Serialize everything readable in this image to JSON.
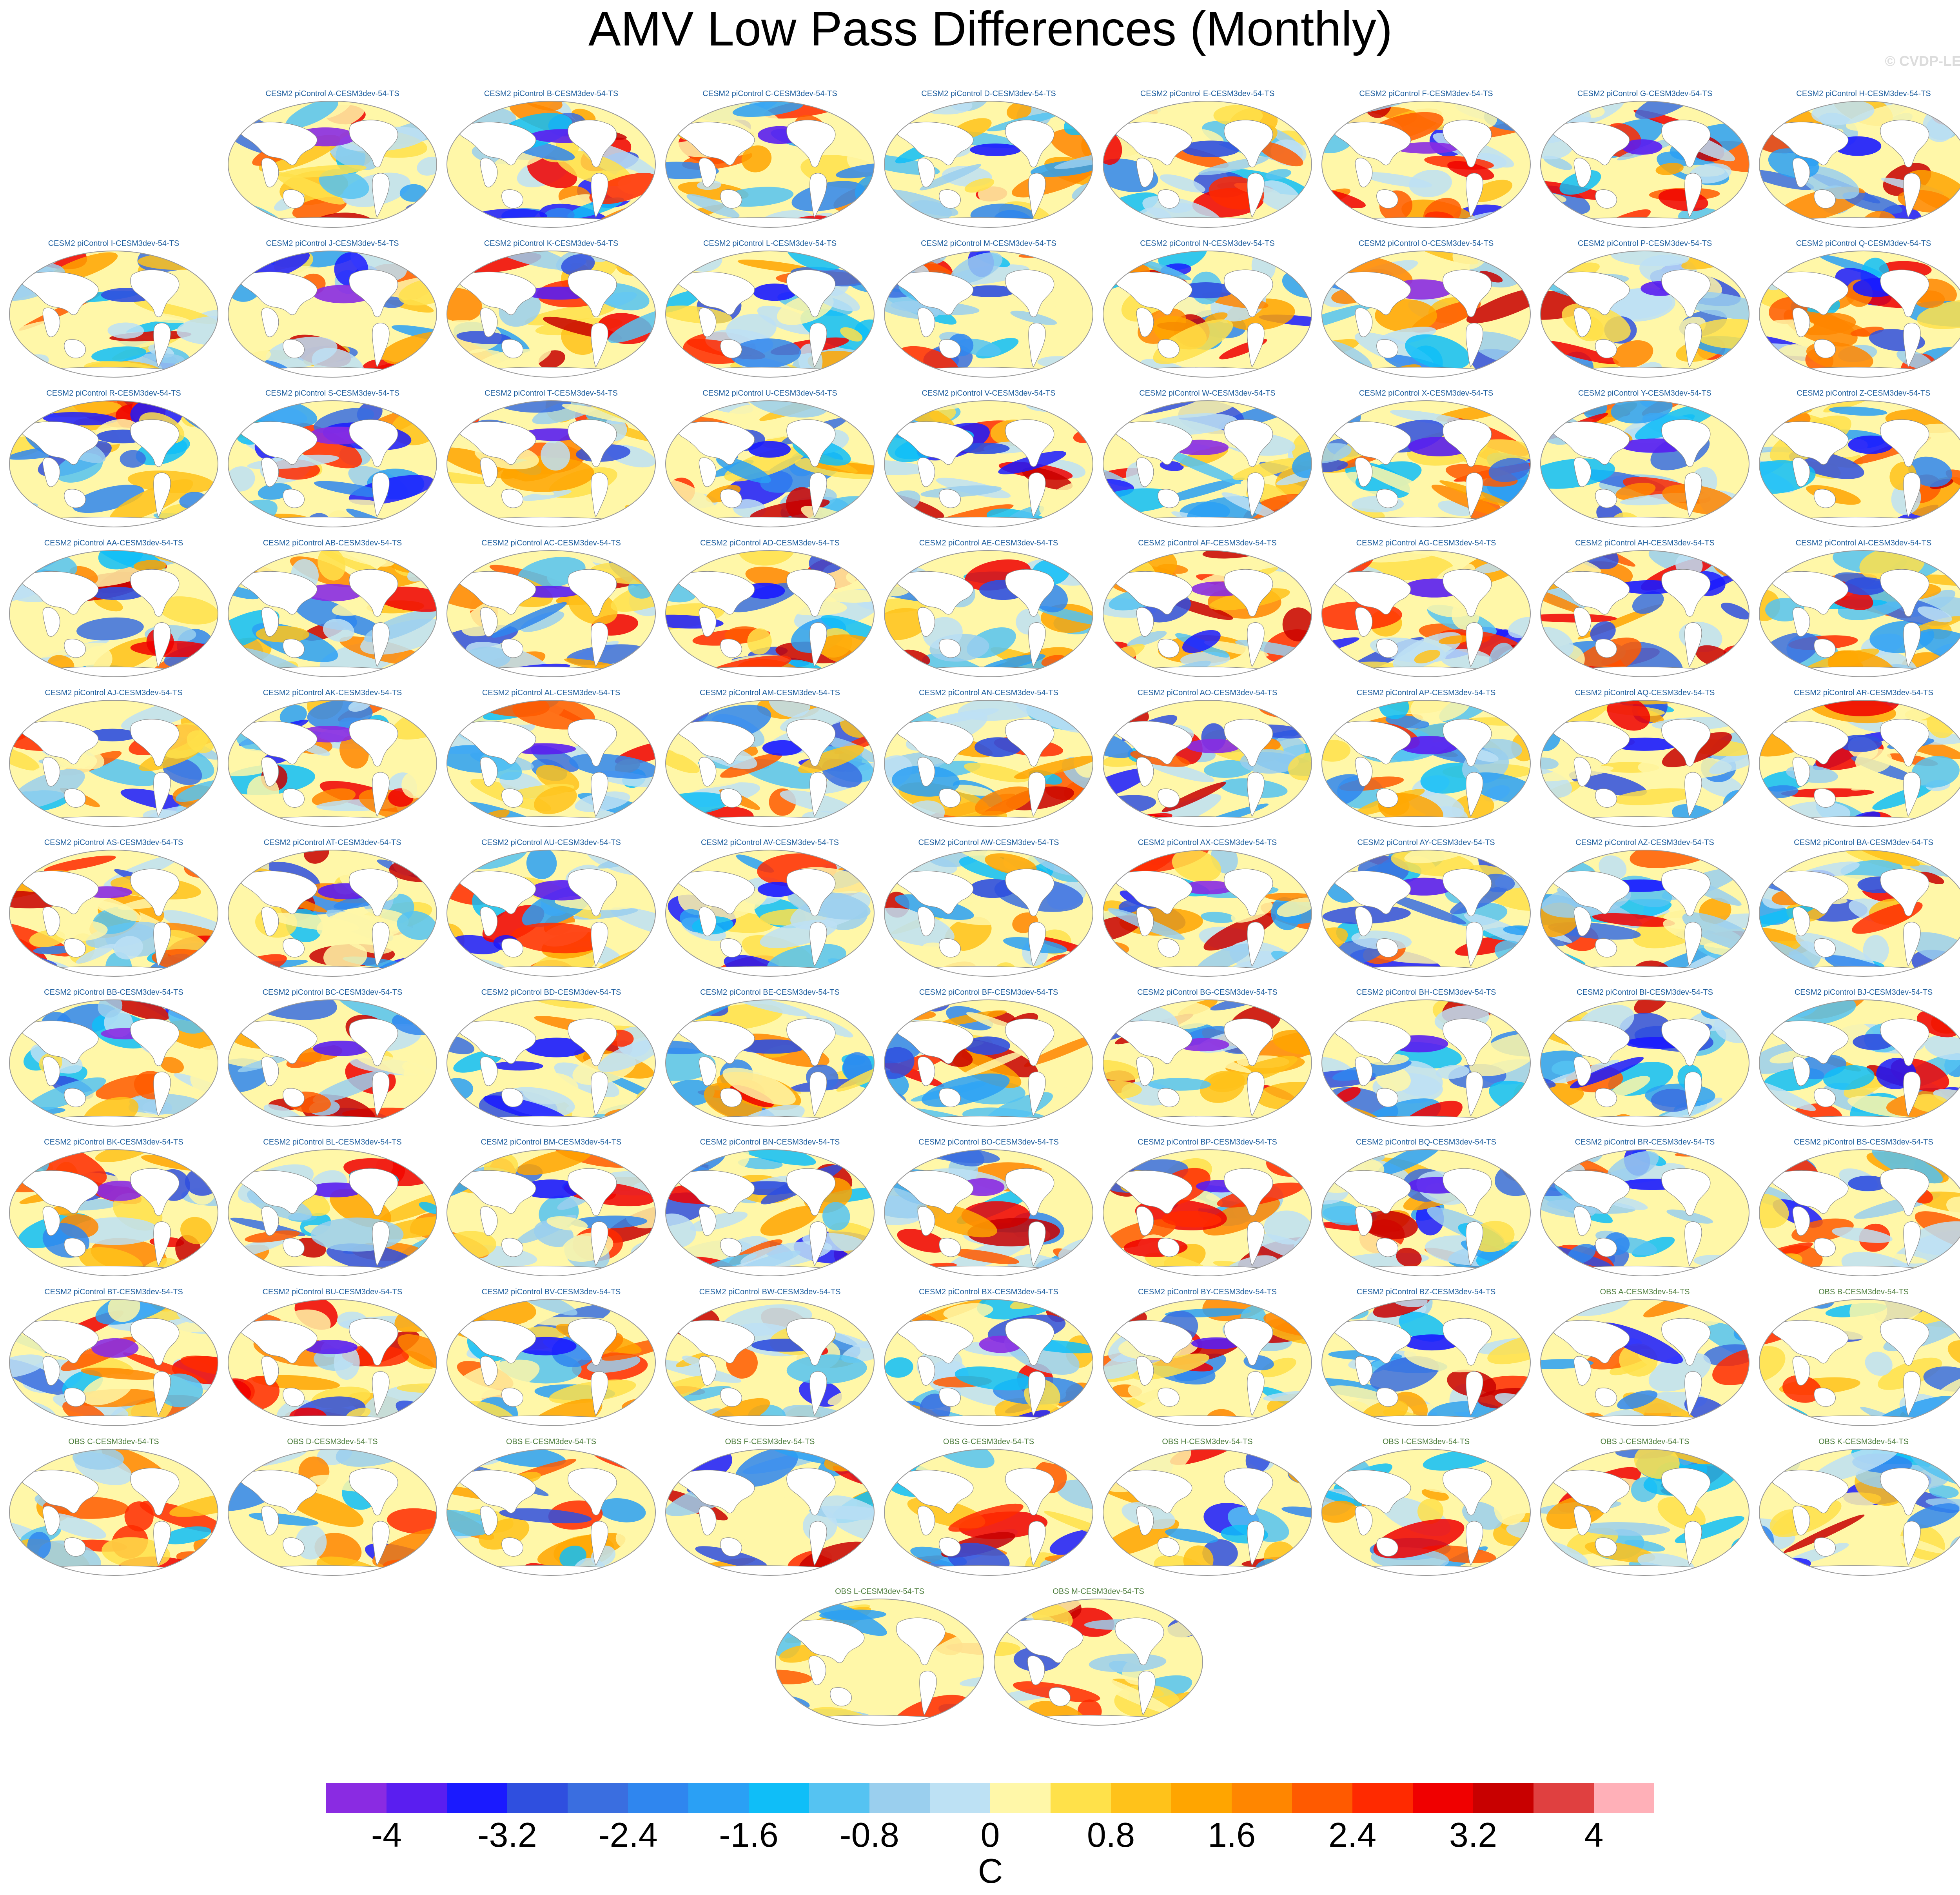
{
  "figure": {
    "title": "AMV Low Pass Differences (Monthly)",
    "watermark": "© CVDP-LE"
  },
  "panels": [
    {
      "label": "CESM2 piControl A-CESM3dev-54-TS",
      "kind": "model"
    },
    {
      "label": "CESM2 piControl B-CESM3dev-54-TS",
      "kind": "model"
    },
    {
      "label": "CESM2 piControl C-CESM3dev-54-TS",
      "kind": "model"
    },
    {
      "label": "CESM2 piControl D-CESM3dev-54-TS",
      "kind": "model"
    },
    {
      "label": "CESM2 piControl E-CESM3dev-54-TS",
      "kind": "model"
    },
    {
      "label": "CESM2 piControl F-CESM3dev-54-TS",
      "kind": "model"
    },
    {
      "label": "CESM2 piControl G-CESM3dev-54-TS",
      "kind": "model"
    },
    {
      "label": "CESM2 piControl H-CESM3dev-54-TS",
      "kind": "model"
    },
    {
      "label": "CESM2 piControl I-CESM3dev-54-TS",
      "kind": "model"
    },
    {
      "label": "CESM2 piControl J-CESM3dev-54-TS",
      "kind": "model"
    },
    {
      "label": "CESM2 piControl K-CESM3dev-54-TS",
      "kind": "model"
    },
    {
      "label": "CESM2 piControl L-CESM3dev-54-TS",
      "kind": "model"
    },
    {
      "label": "CESM2 piControl M-CESM3dev-54-TS",
      "kind": "model"
    },
    {
      "label": "CESM2 piControl N-CESM3dev-54-TS",
      "kind": "model"
    },
    {
      "label": "CESM2 piControl O-CESM3dev-54-TS",
      "kind": "model"
    },
    {
      "label": "CESM2 piControl P-CESM3dev-54-TS",
      "kind": "model"
    },
    {
      "label": "CESM2 piControl Q-CESM3dev-54-TS",
      "kind": "model"
    },
    {
      "label": "CESM2 piControl R-CESM3dev-54-TS",
      "kind": "model"
    },
    {
      "label": "CESM2 piControl S-CESM3dev-54-TS",
      "kind": "model"
    },
    {
      "label": "CESM2 piControl T-CESM3dev-54-TS",
      "kind": "model"
    },
    {
      "label": "CESM2 piControl U-CESM3dev-54-TS",
      "kind": "model"
    },
    {
      "label": "CESM2 piControl V-CESM3dev-54-TS",
      "kind": "model"
    },
    {
      "label": "CESM2 piControl W-CESM3dev-54-TS",
      "kind": "model"
    },
    {
      "label": "CESM2 piControl X-CESM3dev-54-TS",
      "kind": "model"
    },
    {
      "label": "CESM2 piControl Y-CESM3dev-54-TS",
      "kind": "model"
    },
    {
      "label": "CESM2 piControl Z-CESM3dev-54-TS",
      "kind": "model"
    },
    {
      "label": "CESM2 piControl AA-CESM3dev-54-TS",
      "kind": "model"
    },
    {
      "label": "CESM2 piControl AB-CESM3dev-54-TS",
      "kind": "model"
    },
    {
      "label": "CESM2 piControl AC-CESM3dev-54-TS",
      "kind": "model"
    },
    {
      "label": "CESM2 piControl AD-CESM3dev-54-TS",
      "kind": "model"
    },
    {
      "label": "CESM2 piControl AE-CESM3dev-54-TS",
      "kind": "model"
    },
    {
      "label": "CESM2 piControl AF-CESM3dev-54-TS",
      "kind": "model"
    },
    {
      "label": "CESM2 piControl AG-CESM3dev-54-TS",
      "kind": "model"
    },
    {
      "label": "CESM2 piControl AH-CESM3dev-54-TS",
      "kind": "model"
    },
    {
      "label": "CESM2 piControl AI-CESM3dev-54-TS",
      "kind": "model"
    },
    {
      "label": "CESM2 piControl AJ-CESM3dev-54-TS",
      "kind": "model"
    },
    {
      "label": "CESM2 piControl AK-CESM3dev-54-TS",
      "kind": "model"
    },
    {
      "label": "CESM2 piControl AL-CESM3dev-54-TS",
      "kind": "model"
    },
    {
      "label": "CESM2 piControl AM-CESM3dev-54-TS",
      "kind": "model"
    },
    {
      "label": "CESM2 piControl AN-CESM3dev-54-TS",
      "kind": "model"
    },
    {
      "label": "CESM2 piControl AO-CESM3dev-54-TS",
      "kind": "model"
    },
    {
      "label": "CESM2 piControl AP-CESM3dev-54-TS",
      "kind": "model"
    },
    {
      "label": "CESM2 piControl AQ-CESM3dev-54-TS",
      "kind": "model"
    },
    {
      "label": "CESM2 piControl AR-CESM3dev-54-TS",
      "kind": "model"
    },
    {
      "label": "CESM2 piControl AS-CESM3dev-54-TS",
      "kind": "model"
    },
    {
      "label": "CESM2 piControl AT-CESM3dev-54-TS",
      "kind": "model"
    },
    {
      "label": "CESM2 piControl AU-CESM3dev-54-TS",
      "kind": "model"
    },
    {
      "label": "CESM2 piControl AV-CESM3dev-54-TS",
      "kind": "model"
    },
    {
      "label": "CESM2 piControl AW-CESM3dev-54-TS",
      "kind": "model"
    },
    {
      "label": "CESM2 piControl AX-CESM3dev-54-TS",
      "kind": "model"
    },
    {
      "label": "CESM2 piControl AY-CESM3dev-54-TS",
      "kind": "model"
    },
    {
      "label": "CESM2 piControl AZ-CESM3dev-54-TS",
      "kind": "model"
    },
    {
      "label": "CESM2 piControl BA-CESM3dev-54-TS",
      "kind": "model"
    },
    {
      "label": "CESM2 piControl BB-CESM3dev-54-TS",
      "kind": "model"
    },
    {
      "label": "CESM2 piControl BC-CESM3dev-54-TS",
      "kind": "model"
    },
    {
      "label": "CESM2 piControl BD-CESM3dev-54-TS",
      "kind": "model"
    },
    {
      "label": "CESM2 piControl BE-CESM3dev-54-TS",
      "kind": "model"
    },
    {
      "label": "CESM2 piControl BF-CESM3dev-54-TS",
      "kind": "model"
    },
    {
      "label": "CESM2 piControl BG-CESM3dev-54-TS",
      "kind": "model"
    },
    {
      "label": "CESM2 piControl BH-CESM3dev-54-TS",
      "kind": "model"
    },
    {
      "label": "CESM2 piControl BI-CESM3dev-54-TS",
      "kind": "model"
    },
    {
      "label": "CESM2 piControl BJ-CESM3dev-54-TS",
      "kind": "model"
    },
    {
      "label": "CESM2 piControl BK-CESM3dev-54-TS",
      "kind": "model"
    },
    {
      "label": "CESM2 piControl BL-CESM3dev-54-TS",
      "kind": "model"
    },
    {
      "label": "CESM2 piControl BM-CESM3dev-54-TS",
      "kind": "model"
    },
    {
      "label": "CESM2 piControl BN-CESM3dev-54-TS",
      "kind": "model"
    },
    {
      "label": "CESM2 piControl BO-CESM3dev-54-TS",
      "kind": "model"
    },
    {
      "label": "CESM2 piControl BP-CESM3dev-54-TS",
      "kind": "model"
    },
    {
      "label": "CESM2 piControl BQ-CESM3dev-54-TS",
      "kind": "model"
    },
    {
      "label": "CESM2 piControl BR-CESM3dev-54-TS",
      "kind": "model"
    },
    {
      "label": "CESM2 piControl BS-CESM3dev-54-TS",
      "kind": "model"
    },
    {
      "label": "CESM2 piControl BT-CESM3dev-54-TS",
      "kind": "model"
    },
    {
      "label": "CESM2 piControl BU-CESM3dev-54-TS",
      "kind": "model"
    },
    {
      "label": "CESM2 piControl BV-CESM3dev-54-TS",
      "kind": "model"
    },
    {
      "label": "CESM2 piControl BW-CESM3dev-54-TS",
      "kind": "model"
    },
    {
      "label": "CESM2 piControl BX-CESM3dev-54-TS",
      "kind": "model"
    },
    {
      "label": "CESM2 piControl BY-CESM3dev-54-TS",
      "kind": "model"
    },
    {
      "label": "CESM2 piControl BZ-CESM3dev-54-TS",
      "kind": "model"
    },
    {
      "label": "OBS A-CESM3dev-54-TS",
      "kind": "obs"
    },
    {
      "label": "OBS B-CESM3dev-54-TS",
      "kind": "obs"
    },
    {
      "label": "OBS C-CESM3dev-54-TS",
      "kind": "obs"
    },
    {
      "label": "OBS D-CESM3dev-54-TS",
      "kind": "obs"
    },
    {
      "label": "OBS E-CESM3dev-54-TS",
      "kind": "obs"
    },
    {
      "label": "OBS F-CESM3dev-54-TS",
      "kind": "obs"
    },
    {
      "label": "OBS G-CESM3dev-54-TS",
      "kind": "obs"
    },
    {
      "label": "OBS H-CESM3dev-54-TS",
      "kind": "obs"
    },
    {
      "label": "OBS I-CESM3dev-54-TS",
      "kind": "obs"
    },
    {
      "label": "OBS J-CESM3dev-54-TS",
      "kind": "obs"
    },
    {
      "label": "OBS K-CESM3dev-54-TS",
      "kind": "obs"
    },
    {
      "label": "OBS L-CESM3dev-54-TS",
      "kind": "obs"
    },
    {
      "label": "OBS M-CESM3dev-54-TS",
      "kind": "obs"
    }
  ],
  "colorbar": {
    "colors": [
      "#8a2be2",
      "#5a1ef0",
      "#1a1aff",
      "#2f4fdf",
      "#3a6ee0",
      "#2f86ef",
      "#2aa0f5",
      "#0fbef8",
      "#55c3f2",
      "#9acfee",
      "#bde1f4",
      "#fff7a8",
      "#ffe14a",
      "#ffc21a",
      "#ffa500",
      "#ff8600",
      "#ff5a00",
      "#ff2a00",
      "#f00000",
      "#c80000",
      "#e04040",
      "#ffb0b8"
    ],
    "tick_labels": [
      "-4",
      "-3.2",
      "-2.4",
      "-1.6",
      "-0.8",
      "0",
      "0.8",
      "1.6",
      "2.4",
      "3.2",
      "4"
    ],
    "unit": "C"
  },
  "map_colors": {
    "land": "#ffffff",
    "ocean_neutral": "#fff7a8",
    "coast": "#888888"
  }
}
